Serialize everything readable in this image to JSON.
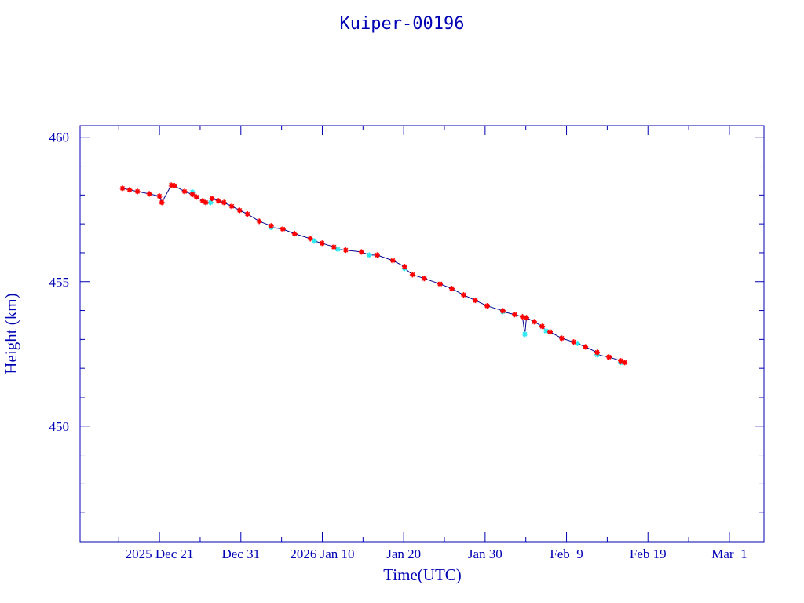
{
  "chart_data": {
    "type": "scatter",
    "title": "Kuiper-00196",
    "xlabel": "Time(UTC)",
    "ylabel": "Height (km)",
    "x_unit": "days since 2025 Dec 21 00:00 UTC",
    "xlim": [
      -9.75,
      74.25
    ],
    "ylim": [
      446.0,
      460.4
    ],
    "grid": false,
    "x_ticks": [
      {
        "value": 0,
        "label": "2025 Dec 21"
      },
      {
        "value": 10,
        "label": "Dec 31"
      },
      {
        "value": 20,
        "label": "2026 Jan 10"
      },
      {
        "value": 30,
        "label": "Jan 20"
      },
      {
        "value": 40,
        "label": "Jan 30"
      },
      {
        "value": 50,
        "label": "Feb  9"
      },
      {
        "value": 60,
        "label": "Feb 19"
      },
      {
        "value": 70,
        "label": "Mar  1"
      }
    ],
    "x_minor_step": 5,
    "y_ticks": [
      {
        "value": 450,
        "label": "450"
      },
      {
        "value": 455,
        "label": "455"
      },
      {
        "value": 460,
        "label": "460"
      }
    ],
    "y_minor_step": 1,
    "colors": {
      "axis": "#0000b4",
      "line": "#00008c",
      "primary": "#ff0000",
      "secondary": "#30e8f0"
    },
    "series": [
      {
        "name": "primary",
        "color": "#ff0000",
        "points": [
          [
            -4.54,
            458.23
          ],
          [
            -3.67,
            458.18
          ],
          [
            -2.7,
            458.12
          ],
          [
            -1.25,
            458.04
          ],
          [
            0,
            457.96
          ],
          [
            0.29,
            457.74
          ],
          [
            1.45,
            458.34
          ],
          [
            1.83,
            458.32
          ],
          [
            3.09,
            458.12
          ],
          [
            4.05,
            458.02
          ],
          [
            4.54,
            457.93
          ],
          [
            5.31,
            457.8
          ],
          [
            5.69,
            457.74
          ],
          [
            6.47,
            457.88
          ],
          [
            7.24,
            457.8
          ],
          [
            7.92,
            457.74
          ],
          [
            8.88,
            457.61
          ],
          [
            9.85,
            457.47
          ],
          [
            10.81,
            457.34
          ],
          [
            12.26,
            457.09
          ],
          [
            13.71,
            456.93
          ],
          [
            15.15,
            456.82
          ],
          [
            16.6,
            456.66
          ],
          [
            18.53,
            456.49
          ],
          [
            19.98,
            456.33
          ],
          [
            21.43,
            456.2
          ],
          [
            22.88,
            456.09
          ],
          [
            24.81,
            456.03
          ],
          [
            26.74,
            455.92
          ],
          [
            28.67,
            455.73
          ],
          [
            30.12,
            455.52
          ],
          [
            31.08,
            455.24
          ],
          [
            32.53,
            455.11
          ],
          [
            34.46,
            454.92
          ],
          [
            35.91,
            454.76
          ],
          [
            37.36,
            454.54
          ],
          [
            38.8,
            454.35
          ],
          [
            40.25,
            454.16
          ],
          [
            42.18,
            453.99
          ],
          [
            43.63,
            453.86
          ],
          [
            44.59,
            453.78
          ],
          [
            45.08,
            453.75
          ],
          [
            46.04,
            453.61
          ],
          [
            47.01,
            453.45
          ],
          [
            47.97,
            453.26
          ],
          [
            49.42,
            453.04
          ],
          [
            50.87,
            452.91
          ],
          [
            52.32,
            452.74
          ],
          [
            53.76,
            452.55
          ],
          [
            55.21,
            452.39
          ],
          [
            56.66,
            452.26
          ],
          [
            57.14,
            452.2
          ]
        ]
      },
      {
        "name": "secondary",
        "color": "#30e8f0",
        "points": [
          [
            4.05,
            458.1
          ],
          [
            5.69,
            457.74
          ],
          [
            6.28,
            457.74
          ],
          [
            13.71,
            456.88
          ],
          [
            19.02,
            456.41
          ],
          [
            21.91,
            456.12
          ],
          [
            25.77,
            455.92
          ],
          [
            30.12,
            455.46
          ],
          [
            42.18,
            453.96
          ],
          [
            44.88,
            453.18
          ],
          [
            47.49,
            453.29
          ],
          [
            51.35,
            452.86
          ],
          [
            53.76,
            452.47
          ],
          [
            56.66,
            452.2
          ]
        ]
      }
    ]
  }
}
